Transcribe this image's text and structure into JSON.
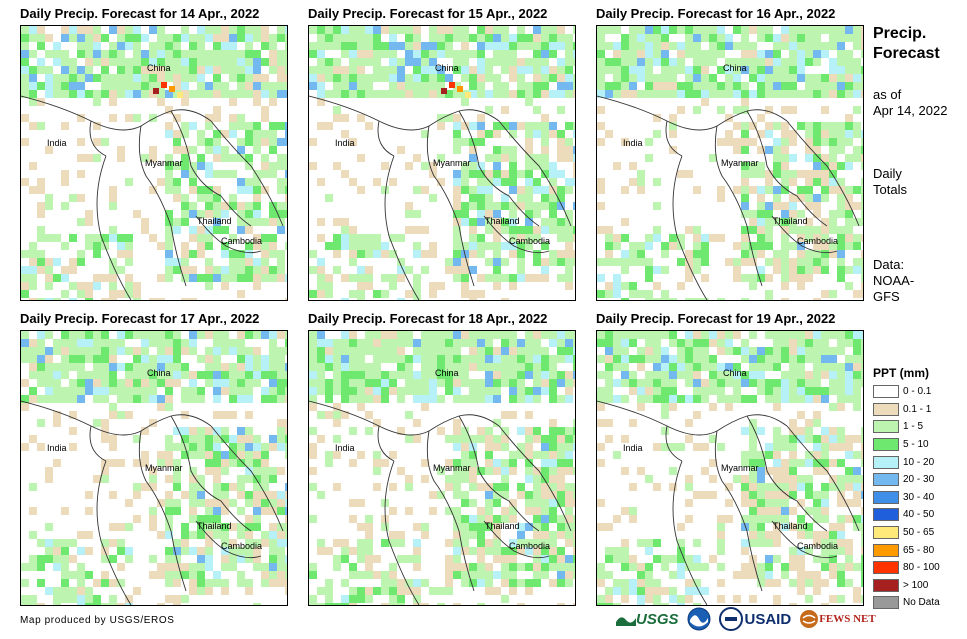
{
  "panels": [
    {
      "title": "Daily Precip. Forecast for 14 Apr., 2022",
      "intensity": 1.0,
      "labels": {
        "china": "China",
        "india": "India",
        "myanmar": "Myanmar",
        "thailand": "Thailand",
        "cambodia": "Cambodia"
      }
    },
    {
      "title": "Daily Precip. Forecast for 15 Apr., 2022",
      "intensity": 0.9,
      "labels": {
        "china": "China",
        "india": "India",
        "myanmar": "Myanmar",
        "thailand": "Thailand",
        "cambodia": "Cambodia"
      }
    },
    {
      "title": "Daily Precip. Forecast for 16 Apr., 2022",
      "intensity": 0.8,
      "labels": {
        "china": "China",
        "india": "India",
        "myanmar": "Myanmar",
        "thailand": "Thailand",
        "cambodia": "Cambodia"
      }
    },
    {
      "title": "Daily Precip. Forecast for 17 Apr., 2022",
      "intensity": 0.85,
      "labels": {
        "china": "China",
        "india": "India",
        "myanmar": "Myanmar",
        "thailand": "Thailand",
        "cambodia": "Cambodia"
      }
    },
    {
      "title": "Daily Precip. Forecast for 18 Apr., 2022",
      "intensity": 0.9,
      "labels": {
        "china": "China",
        "india": "India",
        "myanmar": "Myanmar",
        "thailand": "Thailand",
        "cambodia": "Cambodia"
      }
    },
    {
      "title": "Daily Precip. Forecast for 19 Apr., 2022",
      "intensity": 0.75,
      "labels": {
        "china": "China",
        "india": "India",
        "myanmar": "Myanmar",
        "thailand": "Thailand",
        "cambodia": "Cambodia"
      }
    }
  ],
  "side": {
    "title_line1": "Precip.",
    "title_line2": "Forecast",
    "asof_line1": "as of",
    "asof_line2": "Apr 14, 2022",
    "totals_line1": "Daily",
    "totals_line2": "Totals",
    "data_line1": "Data:",
    "data_line2": "NOAA-",
    "data_line3": "GFS"
  },
  "legend": {
    "title": "PPT (mm)",
    "items": [
      {
        "label": "0 - 0.1",
        "color": "#ffffff"
      },
      {
        "label": "0.1 - 1",
        "color": "#ecdcbc"
      },
      {
        "label": "1 - 5",
        "color": "#bdf5b0"
      },
      {
        "label": "5 - 10",
        "color": "#6fe86f"
      },
      {
        "label": "10 - 20",
        "color": "#b5f1f7"
      },
      {
        "label": "20 - 30",
        "color": "#73b9f0"
      },
      {
        "label": "30 - 40",
        "color": "#3f8ee8"
      },
      {
        "label": "40 - 50",
        "color": "#1f5fdc"
      },
      {
        "label": "50 - 65",
        "color": "#ffe97a"
      },
      {
        "label": "65 - 80",
        "color": "#ff9900"
      },
      {
        "label": "80 - 100",
        "color": "#ff3300"
      },
      {
        "label": "> 100",
        "color": "#a62020"
      },
      {
        "label": "No Data",
        "color": "#999999"
      }
    ]
  },
  "footer": "Map produced by USGS/EROS",
  "logos": {
    "usgs": "USGS",
    "usaid": "USAID",
    "fewsnet": "FEWS NET"
  }
}
